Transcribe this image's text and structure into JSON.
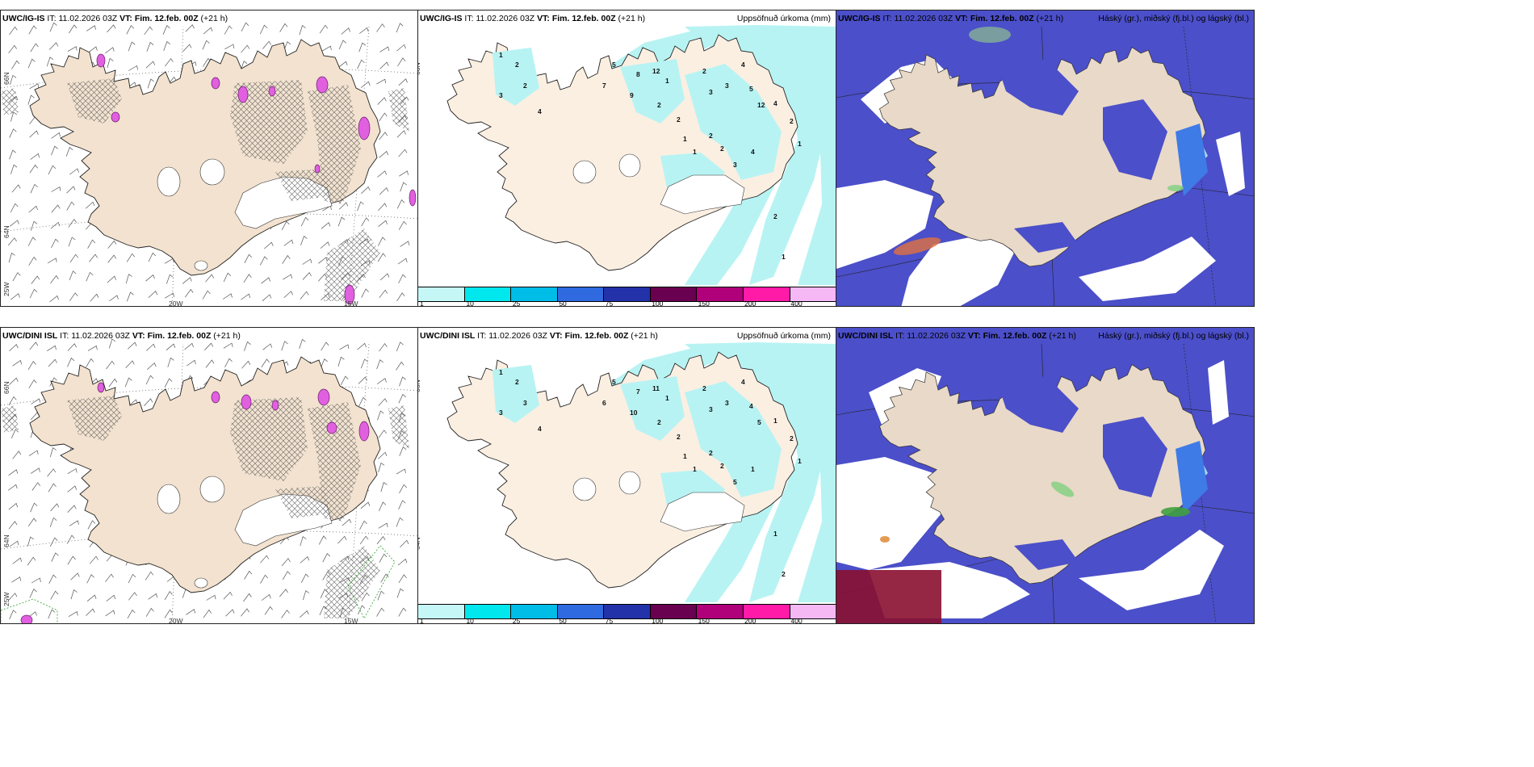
{
  "panels": [
    {
      "model": "UWC/IG-IS",
      "label_it": "IT:",
      "it": "11.02.2026 03Z",
      "label_vt": "VT:",
      "vt": "Fim. 12.feb. 00Z",
      "lead": "(+21 h)",
      "right_title": ""
    },
    {
      "model": "UWC/IG-IS",
      "label_it": "IT:",
      "it": "11.02.2026 03Z",
      "label_vt": "VT:",
      "vt": "Fim. 12.feb. 00Z",
      "lead": "(+21 h)",
      "right_title": "Uppsöfnuð úrkoma (mm)"
    },
    {
      "model": "UWC/IG-IS",
      "label_it": "IT:",
      "it": "11.02.2026 03Z",
      "label_vt": "VT:",
      "vt": "Fim. 12.feb. 00Z",
      "lead": "(+21 h)",
      "right_title": "Háský (gr.), miðský (fj.bl.) og lágský (bl.)"
    },
    {
      "model": "UWC/DINI ISL",
      "label_it": "IT:",
      "it": "11.02.2026 03Z",
      "label_vt": "VT:",
      "vt": "Fim. 12.feb. 00Z",
      "lead": "(+21 h)",
      "right_title": ""
    },
    {
      "model": "UWC/DINI ISL",
      "label_it": "IT:",
      "it": "11.02.2026 03Z",
      "label_vt": "VT:",
      "vt": "Fim. 12.feb. 00Z",
      "lead": "(+21 h)",
      "right_title": "Uppsöfnuð úrkoma (mm)"
    },
    {
      "model": "UWC/DINI ISL",
      "label_it": "IT:",
      "it": "11.02.2026 03Z",
      "label_vt": "VT:",
      "vt": "Fim. 12.feb. 00Z",
      "lead": "(+21 h)",
      "right_title": "Háský (gr.), miðský (fj.bl.) og lágský (bl.)"
    }
  ],
  "grid_labels": {
    "lat_top": "66N",
    "lat_bottom": "64N",
    "lon_left": "25W",
    "lon_mid": "20W",
    "lon_right": "15W"
  },
  "colorbar": {
    "ticks": [
      "1",
      "10",
      "25",
      "50",
      "75",
      "100",
      "150",
      "200",
      "400"
    ],
    "colors": [
      "#c6f7f7",
      "#00e8ee",
      "#00bde8",
      "#2f6ae0",
      "#2332a8",
      "#6a0050",
      "#b0007a",
      "#ff1aa8",
      "#f5b8f5"
    ]
  },
  "precip_labels_top": [
    "1",
    "2",
    "2",
    "3",
    "4",
    "5",
    "7",
    "8",
    "9",
    "12",
    "1",
    "2",
    "2",
    "3",
    "3",
    "4",
    "5",
    "12",
    "2",
    "1",
    "1",
    "2",
    "2",
    "3",
    "4",
    "4",
    "2",
    "1",
    "2",
    "1"
  ],
  "precip_labels_bottom": [
    "1",
    "2",
    "3",
    "3",
    "4",
    "5",
    "6",
    "7",
    "10",
    "11",
    "1",
    "2",
    "2",
    "3",
    "3",
    "4",
    "4",
    "5",
    "2",
    "1",
    "1",
    "2",
    "2",
    "5",
    "1",
    "1",
    "2",
    "1",
    "1",
    "2"
  ],
  "colors": {
    "land": "#f2e2cf",
    "map_land_dark": "#e9d9c8",
    "cloud_high": "#4b4fc9",
    "cloud_mid": "#3f7be6",
    "cloud_light": "#a6d9f2",
    "ice_pink": "#e060e0"
  }
}
